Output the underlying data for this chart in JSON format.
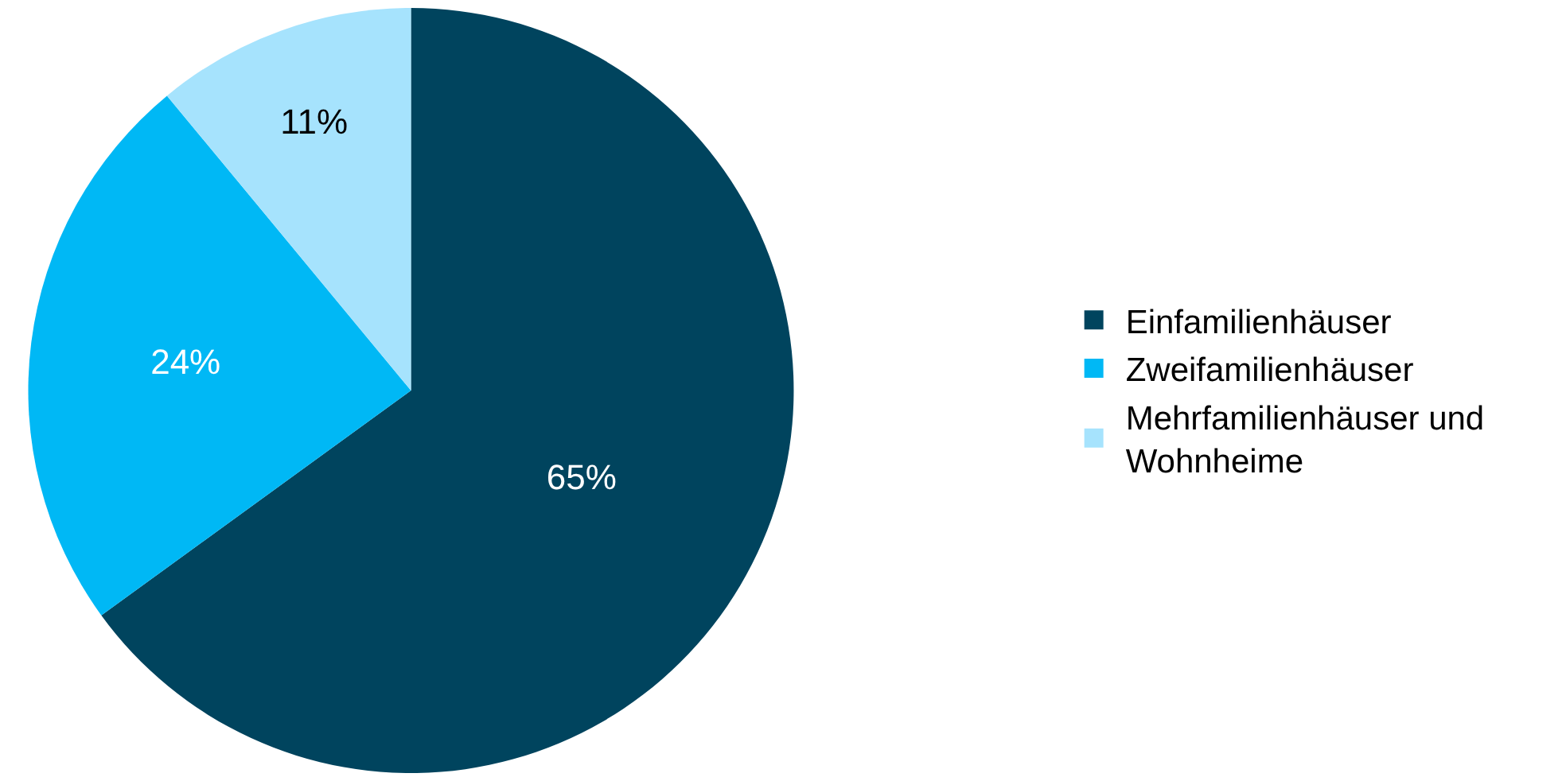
{
  "chart_data": {
    "type": "pie",
    "categories": [
      "Einfamilienhäuser",
      "Zweifamilienhäuser",
      "Mehrfamilienhäuser und Wohnheime"
    ],
    "values": [
      65,
      24,
      11
    ],
    "colors": [
      "#00445e",
      "#00b8f5",
      "#a6e3fd"
    ],
    "value_labels": [
      "65%",
      "24%",
      "11%"
    ],
    "legend": "right"
  }
}
